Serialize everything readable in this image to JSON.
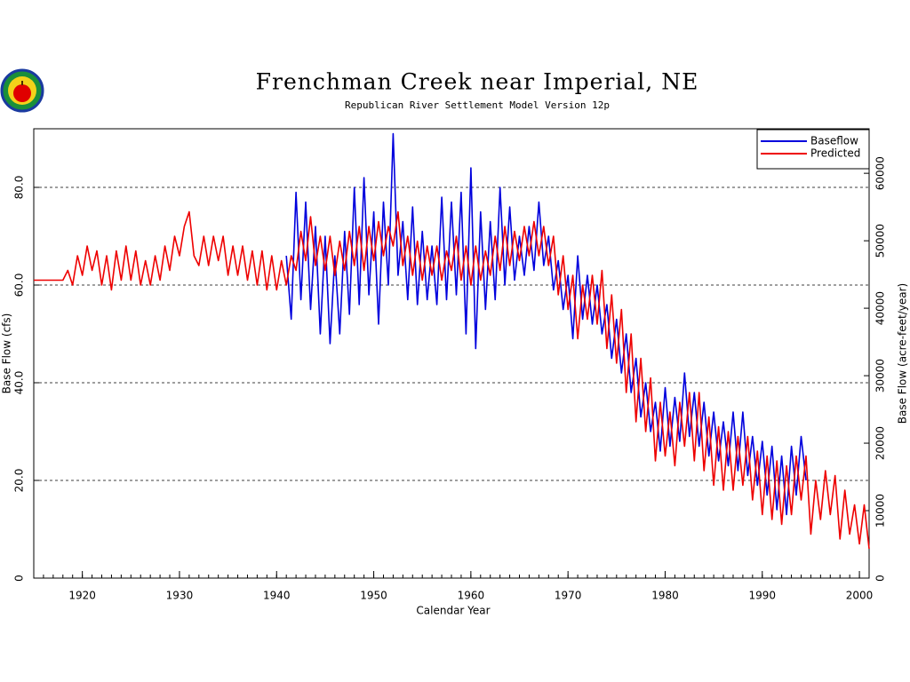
{
  "chart_data": {
    "type": "line",
    "title": "Frenchman Creek near Imperial, NE",
    "subtitle": "Republican River Settlement Model Version 12p",
    "x_label": "Calendar Year",
    "y_label": "Base Flow (cfs)",
    "y2_label": "Base Flow (acre-feet/year)",
    "xlim": [
      1915,
      2001
    ],
    "xticks": [
      1920,
      1930,
      1940,
      1950,
      1960,
      1970,
      1980,
      1990,
      2000
    ],
    "xminorticks": [
      1915,
      1916,
      1917,
      1918,
      1919,
      1920,
      1921,
      1922,
      1923,
      1924,
      1925,
      1926,
      1927,
      1928,
      1929,
      1930,
      1931,
      1932,
      1933,
      1934,
      1935,
      1936,
      1937,
      1938,
      1939,
      1940,
      1941,
      1942,
      1943,
      1944,
      1945,
      1946,
      1947,
      1948,
      1949,
      1950,
      1951,
      1952,
      1953,
      1954,
      1955,
      1956,
      1957,
      1958,
      1959,
      1960,
      1961,
      1962,
      1963,
      1964,
      1965,
      1966,
      1967,
      1968,
      1969,
      1970,
      1971,
      1972,
      1973,
      1974,
      1975,
      1976,
      1977,
      1978,
      1979,
      1980,
      1981,
      1982,
      1983,
      1984,
      1985,
      1986,
      1987,
      1988,
      1989,
      1990,
      1991,
      1992,
      1993,
      1994,
      1995,
      1996,
      1997,
      1998,
      1999,
      2000,
      2001
    ],
    "ylim": [
      0,
      92
    ],
    "yticks": [
      0,
      {
        "value": 20,
        "label": "20.0"
      },
      {
        "value": 40,
        "label": "40.0"
      },
      {
        "value": 60,
        "label": "60.0"
      },
      {
        "value": 80,
        "label": "80.0"
      }
    ],
    "y2lim": [
      0,
      66600
    ],
    "y2ticks": [
      0,
      10000,
      20000,
      30000,
      40000,
      50000,
      60000
    ],
    "grid": true,
    "legend": "upper right",
    "x": [
      1915,
      1915.5,
      1916,
      1916.5,
      1917,
      1917.5,
      1918,
      1918.5,
      1919,
      1919.5,
      1920,
      1920.5,
      1921,
      1921.5,
      1922,
      1922.5,
      1923,
      1923.5,
      1924,
      1924.5,
      1925,
      1925.5,
      1926,
      1926.5,
      1927,
      1927.5,
      1928,
      1928.5,
      1929,
      1929.5,
      1930,
      1930.5,
      1931,
      1931.5,
      1932,
      1932.5,
      1933,
      1933.5,
      1934,
      1934.5,
      1935,
      1935.5,
      1936,
      1936.5,
      1937,
      1937.5,
      1938,
      1938.5,
      1939,
      1939.5,
      1940,
      1940.5,
      1941,
      1941.5,
      1942,
      1942.5,
      1943,
      1943.5,
      1944,
      1944.5,
      1945,
      1945.5,
      1946,
      1946.5,
      1947,
      1947.5,
      1948,
      1948.5,
      1949,
      1949.5,
      1950,
      1950.5,
      1951,
      1951.5,
      1952,
      1952.5,
      1953,
      1953.5,
      1954,
      1954.5,
      1955,
      1955.5,
      1956,
      1956.5,
      1957,
      1957.5,
      1958,
      1958.5,
      1959,
      1959.5,
      1960,
      1960.5,
      1961,
      1961.5,
      1962,
      1962.5,
      1963,
      1963.5,
      1964,
      1964.5,
      1965,
      1965.5,
      1966,
      1966.5,
      1967,
      1967.5,
      1968,
      1968.5,
      1969,
      1969.5,
      1970,
      1970.5,
      1971,
      1971.5,
      1972,
      1972.5,
      1973,
      1973.5,
      1974,
      1974.5,
      1975,
      1975.5,
      1976,
      1976.5,
      1977,
      1977.5,
      1978,
      1978.5,
      1979,
      1979.5,
      1980,
      1980.5,
      1981,
      1981.5,
      1982,
      1982.5,
      1983,
      1983.5,
      1984,
      1984.5,
      1985,
      1985.5,
      1986,
      1986.5,
      1987,
      1987.5,
      1988,
      1988.5,
      1989,
      1989.5,
      1990,
      1990.5,
      1991,
      1991.5,
      1992,
      1992.5,
      1993,
      1993.5,
      1994,
      1994.5,
      1995,
      1995.5,
      1996,
      1996.5,
      1997,
      1997.5,
      1998,
      1998.5,
      1999,
      1999.5,
      2000,
      2000.5,
      2001
    ],
    "series": [
      {
        "name": "Baseflow",
        "color": "#0000dd",
        "values": [
          null,
          null,
          null,
          null,
          null,
          null,
          null,
          null,
          null,
          null,
          null,
          null,
          null,
          null,
          null,
          null,
          null,
          null,
          null,
          null,
          null,
          null,
          null,
          null,
          null,
          null,
          null,
          null,
          null,
          null,
          null,
          null,
          null,
          null,
          null,
          null,
          null,
          null,
          null,
          null,
          null,
          null,
          null,
          null,
          null,
          null,
          null,
          null,
          null,
          null,
          null,
          null,
          66,
          53,
          79,
          57,
          77,
          55,
          72,
          50,
          70,
          48,
          66,
          50,
          71,
          54,
          80,
          56,
          82,
          58,
          75,
          52,
          77,
          60,
          91,
          62,
          73,
          57,
          76,
          56,
          71,
          57,
          68,
          56,
          78,
          57,
          77,
          58,
          79,
          50,
          84,
          47,
          75,
          55,
          73,
          57,
          80,
          60,
          76,
          61,
          70,
          62,
          72,
          63,
          77,
          64,
          70,
          59,
          65,
          55,
          62,
          49,
          66,
          53,
          62,
          52,
          60,
          50,
          56,
          45,
          53,
          42,
          50,
          38,
          45,
          33,
          40,
          30,
          36,
          26,
          39,
          27,
          37,
          28,
          42,
          29,
          38,
          27,
          36,
          25,
          34,
          24,
          32,
          23,
          34,
          22,
          34,
          21,
          29,
          19,
          28,
          17,
          27,
          14,
          25,
          13,
          27,
          17,
          29,
          20,
          null,
          null,
          null,
          null,
          null,
          null,
          null,
          null,
          null,
          null,
          null,
          null,
          null
        ]
      },
      {
        "name": "Predicted",
        "color": "#ee0000",
        "values": [
          61,
          61,
          61,
          61,
          61,
          61,
          61,
          63,
          60,
          66,
          62,
          68,
          63,
          67,
          60,
          66,
          59,
          67,
          61,
          68,
          61,
          67,
          60,
          65,
          60,
          66,
          61,
          68,
          63,
          70,
          66,
          72,
          75,
          66,
          64,
          70,
          64,
          70,
          65,
          70,
          62,
          68,
          62,
          68,
          61,
          67,
          60,
          67,
          59,
          66,
          59,
          65,
          60,
          66,
          63,
          71,
          65,
          74,
          64,
          70,
          63,
          70,
          62,
          69,
          63,
          71,
          64,
          72,
          63,
          72,
          65,
          73,
          66,
          72,
          68,
          75,
          64,
          70,
          62,
          69,
          61,
          68,
          62,
          68,
          61,
          67,
          63,
          70,
          61,
          68,
          60,
          68,
          61,
          67,
          62,
          70,
          63,
          72,
          64,
          71,
          65,
          72,
          66,
          73,
          66,
          72,
          64,
          70,
          58,
          66,
          55,
          62,
          49,
          60,
          53,
          62,
          52,
          63,
          47,
          58,
          44,
          55,
          38,
          50,
          32,
          45,
          30,
          41,
          24,
          36,
          25,
          34,
          23,
          36,
          27,
          38,
          24,
          38,
          22,
          33,
          19,
          31,
          18,
          30,
          18,
          29,
          19,
          29,
          16,
          26,
          13,
          25,
          12,
          24,
          11,
          23,
          13,
          25,
          16,
          25,
          9,
          20,
          12,
          22,
          13,
          21,
          8,
          18,
          9,
          15,
          7,
          15,
          6
        ]
      }
    ]
  }
}
